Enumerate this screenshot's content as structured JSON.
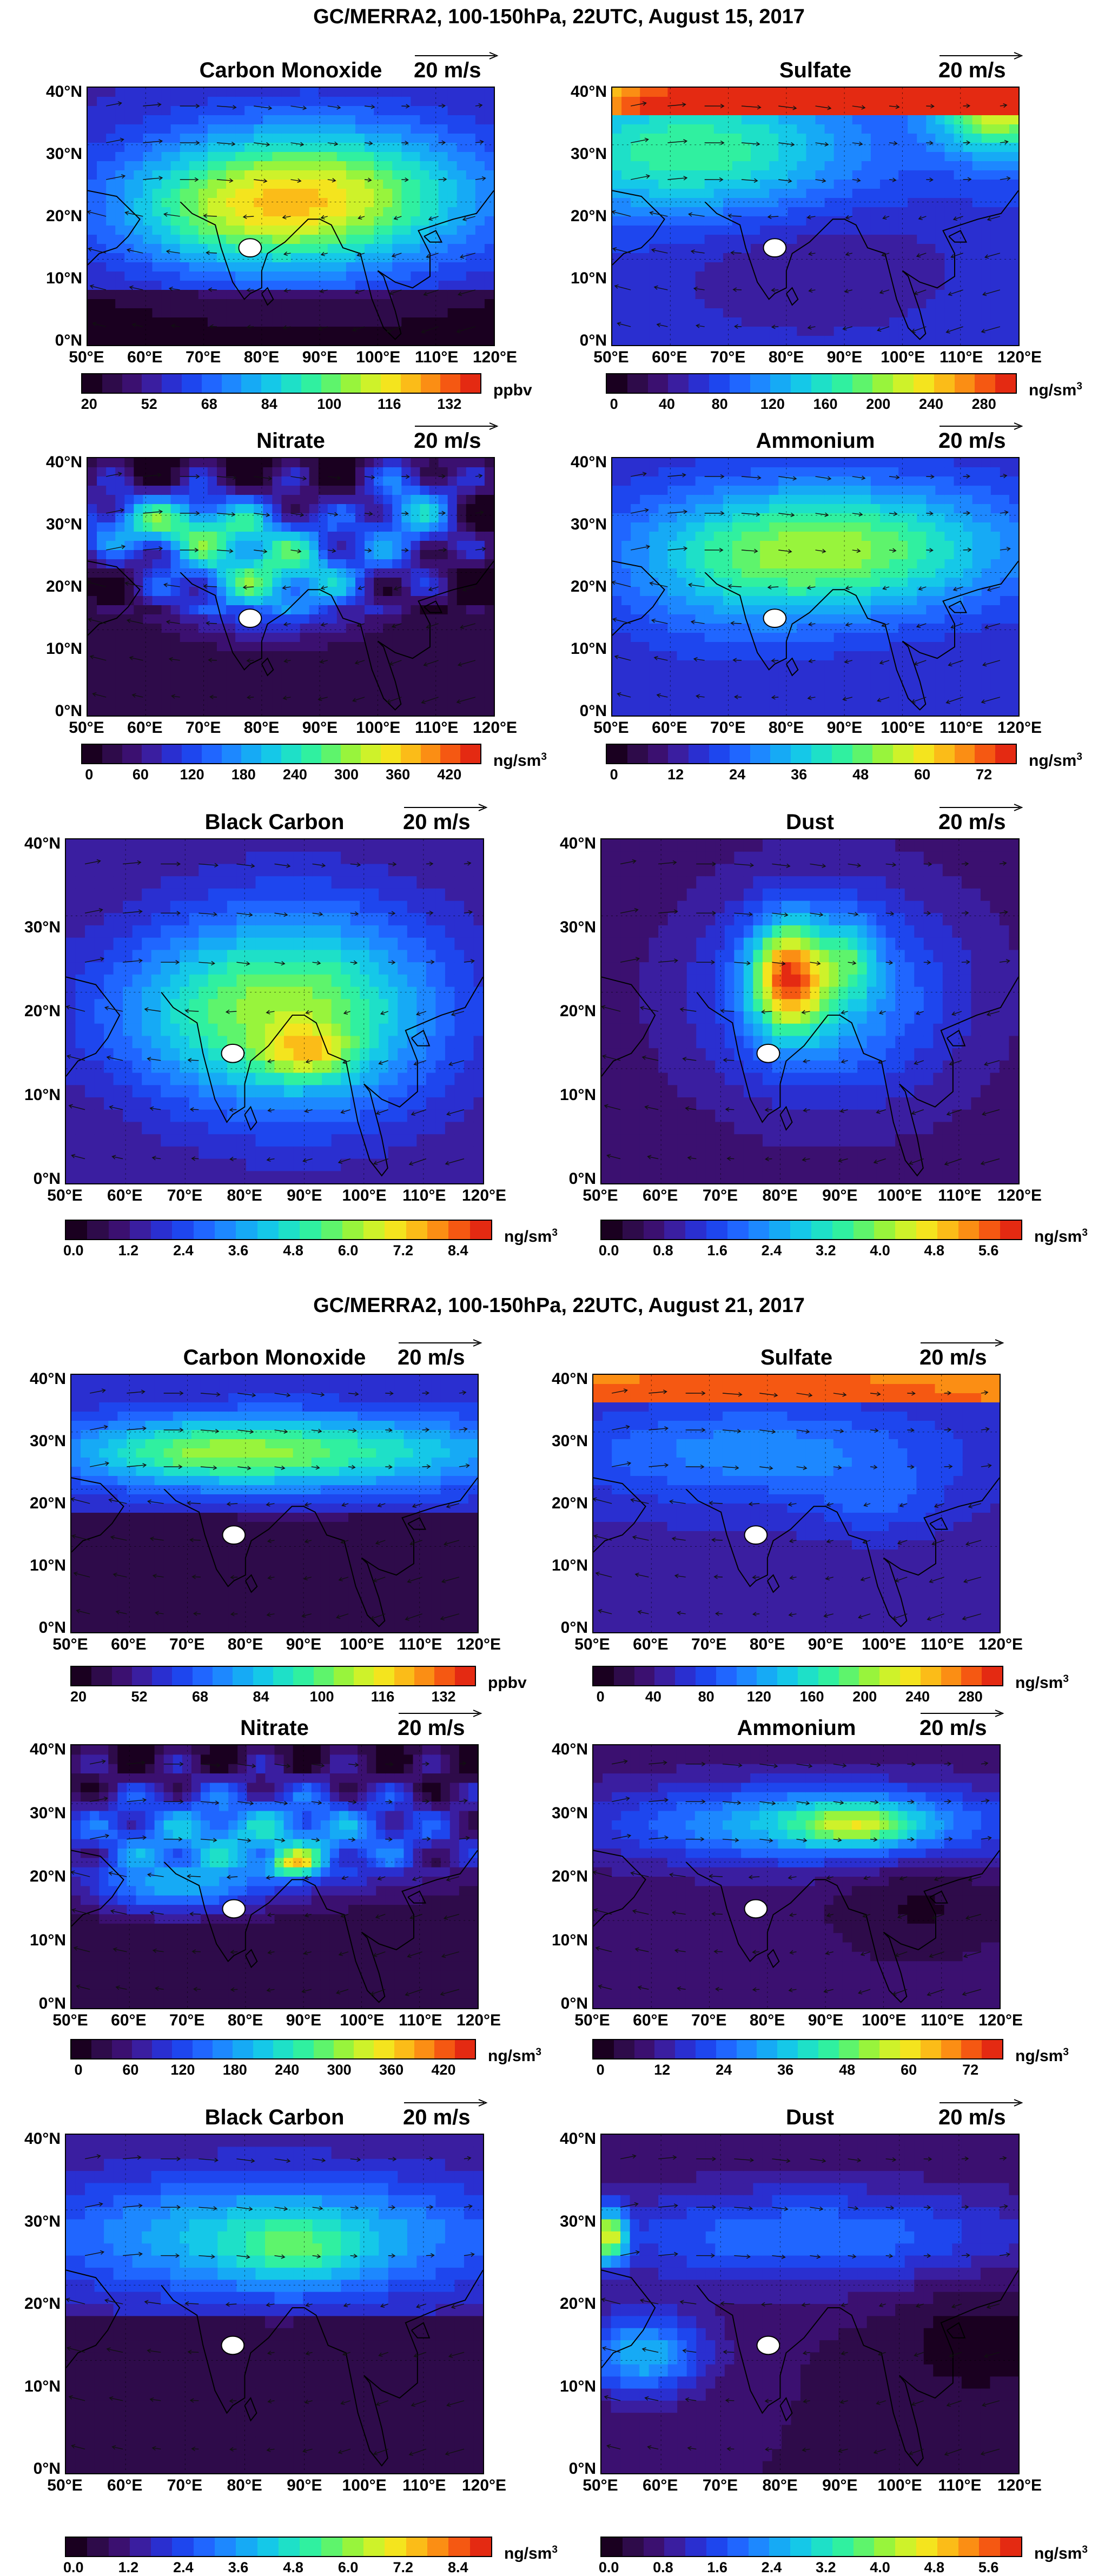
{
  "titles": [
    "GC/MERRA2, 100-150hPa, 22UTC, August 15, 2017",
    "GC/MERRA2, 100-150hPa, 22UTC, August 21, 2017"
  ],
  "wind_scale_label": "20 m/s",
  "lat_labels": [
    "40°N",
    "30°N",
    "20°N",
    "10°N",
    "0°N"
  ],
  "lon_labels": [
    "50°E",
    "60°E",
    "70°E",
    "80°E",
    "90°E",
    "100°E",
    "110°E",
    "120°E"
  ],
  "colorbars": {
    "co": {
      "ticks": [
        "20",
        "52",
        "68",
        "84",
        "100",
        "116",
        "132"
      ],
      "unit": "ppbv",
      "unit_sup": ""
    },
    "so4": {
      "ticks": [
        "0",
        "40",
        "80",
        "120",
        "160",
        "200",
        "240",
        "280"
      ],
      "unit": "ng/sm",
      "unit_sup": "3"
    },
    "nit": {
      "ticks": [
        "0",
        "60",
        "120",
        "180",
        "240",
        "300",
        "360",
        "420"
      ],
      "unit": "ng/sm",
      "unit_sup": "3"
    },
    "nh4": {
      "ticks": [
        "0",
        "12",
        "24",
        "36",
        "48",
        "60",
        "72"
      ],
      "unit": "ng/sm",
      "unit_sup": "3"
    },
    "bc": {
      "ticks": [
        "0.0",
        "1.2",
        "2.4",
        "3.6",
        "4.8",
        "6.0",
        "7.2",
        "8.4"
      ],
      "unit": "ng/sm",
      "unit_sup": "3"
    },
    "dust": {
      "ticks": [
        "0.0",
        "0.8",
        "1.6",
        "2.4",
        "3.2",
        "4.0",
        "4.8",
        "5.6"
      ],
      "unit": "ng/sm",
      "unit_sup": "3"
    }
  },
  "colors": {
    "palette": [
      "#1a0020",
      "#2e0b4a",
      "#3b1070",
      "#3a1ea0",
      "#2a2fd0",
      "#1e46ee",
      "#2066ff",
      "#1d88ff",
      "#16aaf5",
      "#15c8e8",
      "#1ee0c8",
      "#30f0a0",
      "#5ef46c",
      "#98f43c",
      "#cef22a",
      "#f4e41e",
      "#fbbc18",
      "#fb8e14",
      "#f55812",
      "#e42a12"
    ],
    "site_marker": "#ffffff"
  },
  "site": {
    "lat": 17,
    "lon": 78
  },
  "panels": [
    {
      "title": "Carbon Monoxide",
      "cbar": "co",
      "species": "co",
      "date": 0
    },
    {
      "title": "Sulfate",
      "cbar": "so4",
      "species": "so4",
      "date": 0
    },
    {
      "title": "Nitrate",
      "cbar": "nit",
      "species": "nit",
      "date": 0
    },
    {
      "title": "Ammonium",
      "cbar": "nh4",
      "species": "nh4",
      "date": 0
    },
    {
      "title": "Black Carbon",
      "cbar": "bc",
      "species": "bc",
      "date": 0
    },
    {
      "title": "Dust",
      "cbar": "dust",
      "species": "dust",
      "date": 0
    },
    {
      "title": "Carbon Monoxide",
      "cbar": "co",
      "species": "co",
      "date": 1
    },
    {
      "title": "Sulfate",
      "cbar": "so4",
      "species": "so4",
      "date": 1
    },
    {
      "title": "Nitrate",
      "cbar": "nit",
      "species": "nit",
      "date": 1
    },
    {
      "title": "Ammonium",
      "cbar": "nh4",
      "species": "nh4",
      "date": 1
    },
    {
      "title": "Black Carbon",
      "cbar": "bc",
      "species": "bc",
      "date": 1
    },
    {
      "title": "Dust",
      "cbar": "dust",
      "species": "dust",
      "date": 1
    }
  ]
}
